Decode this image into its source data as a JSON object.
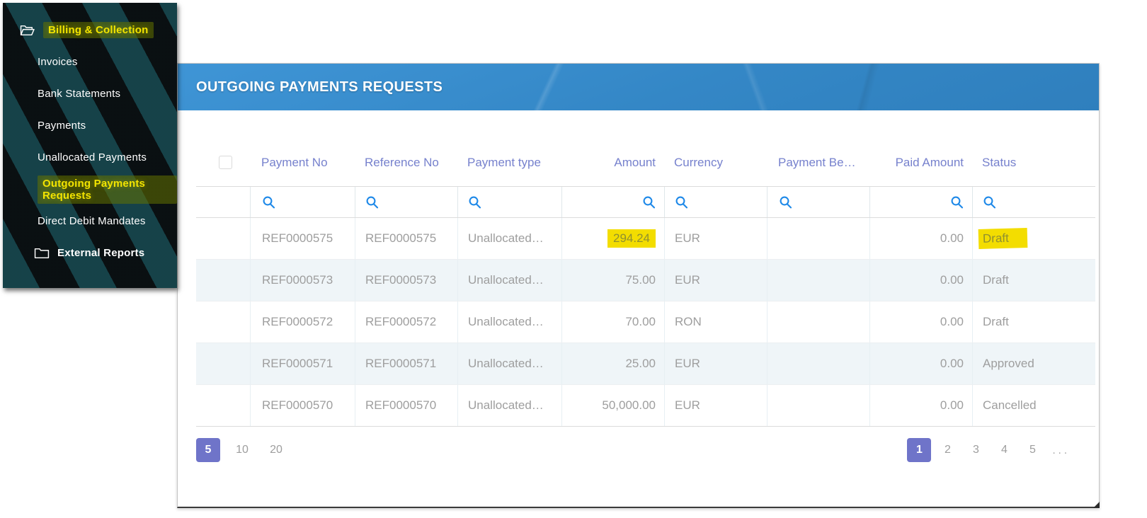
{
  "sidebar": {
    "items": [
      {
        "label": "Billing & Collection",
        "type": "section",
        "icon": "open-folder-icon",
        "indent": 0,
        "highlighted": true
      },
      {
        "label": "Invoices",
        "type": "item"
      },
      {
        "label": "Bank Statements",
        "type": "item"
      },
      {
        "label": "Payments",
        "type": "item"
      },
      {
        "label": "Unallocated Payments",
        "type": "item"
      },
      {
        "label": "Outgoing Payments Requests",
        "type": "item",
        "highlighted": true
      },
      {
        "label": "Direct Debit Mandates",
        "type": "item"
      },
      {
        "label": "External Reports",
        "type": "section",
        "icon": "closed-folder-icon",
        "indent": 1
      }
    ]
  },
  "panel": {
    "title": "OUTGOING PAYMENTS REQUESTS"
  },
  "table": {
    "columns": [
      {
        "key": "select",
        "label": "",
        "has_checkbox": true,
        "searchable": false
      },
      {
        "key": "payment_no",
        "label": "Payment No",
        "searchable": true
      },
      {
        "key": "reference_no",
        "label": "Reference No",
        "searchable": true
      },
      {
        "key": "payment_type",
        "label": "Payment type",
        "searchable": true
      },
      {
        "key": "amount",
        "label": "Amount",
        "searchable": true
      },
      {
        "key": "currency",
        "label": "Currency",
        "searchable": true
      },
      {
        "key": "payment_be",
        "label": "Payment Be…",
        "searchable": true
      },
      {
        "key": "paid_amount",
        "label": "Paid Amount",
        "searchable": true
      },
      {
        "key": "status",
        "label": "Status",
        "searchable": true
      }
    ],
    "search_icon": "search-icon",
    "rows": [
      {
        "payment_no": "REF0000575",
        "reference_no": "REF0000575",
        "payment_type": "Unallocated…",
        "amount": "294.24",
        "currency": "EUR",
        "payment_be": "",
        "paid_amount": "0.00",
        "status": "Draft",
        "amount_highlighted": true,
        "status_highlighted": true
      },
      {
        "payment_no": "REF0000573",
        "reference_no": "REF0000573",
        "payment_type": "Unallocated…",
        "amount": "75.00",
        "currency": "EUR",
        "payment_be": "",
        "paid_amount": "0.00",
        "status": "Draft"
      },
      {
        "payment_no": "REF0000572",
        "reference_no": "REF0000572",
        "payment_type": "Unallocated…",
        "amount": "70.00",
        "currency": "RON",
        "payment_be": "",
        "paid_amount": "0.00",
        "status": "Draft"
      },
      {
        "payment_no": "REF0000571",
        "reference_no": "REF0000571",
        "payment_type": "Unallocated…",
        "amount": "25.00",
        "currency": "EUR",
        "payment_be": "",
        "paid_amount": "0.00",
        "status": "Approved"
      },
      {
        "payment_no": "REF0000570",
        "reference_no": "REF0000570",
        "payment_type": "Unallocated…",
        "amount": "50,000.00",
        "currency": "EUR",
        "payment_be": "",
        "paid_amount": "0.00",
        "status": "Cancelled"
      }
    ]
  },
  "pagination": {
    "page_sizes": [
      {
        "label": "5",
        "active": true
      },
      {
        "label": "10",
        "active": false
      },
      {
        "label": "20",
        "active": false
      }
    ],
    "pages": [
      {
        "label": "1",
        "active": true
      },
      {
        "label": "2",
        "active": false
      },
      {
        "label": "3",
        "active": false
      },
      {
        "label": "4",
        "active": false
      },
      {
        "label": "5",
        "active": false
      },
      {
        "label": "...",
        "active": false,
        "ellipsis": true
      }
    ]
  },
  "colors": {
    "header_blue": "#3a8ccd",
    "column_header_text": "#7681cd",
    "search_icon_blue": "#1d88e8",
    "row_text_gray": "#9e9e9e",
    "alt_row_bg": "#eff5f8",
    "accent_purple": "#6f74c9",
    "highlight_yellow": "#f3dd00",
    "sidebar_highlight_yellow": "#f2e400"
  }
}
